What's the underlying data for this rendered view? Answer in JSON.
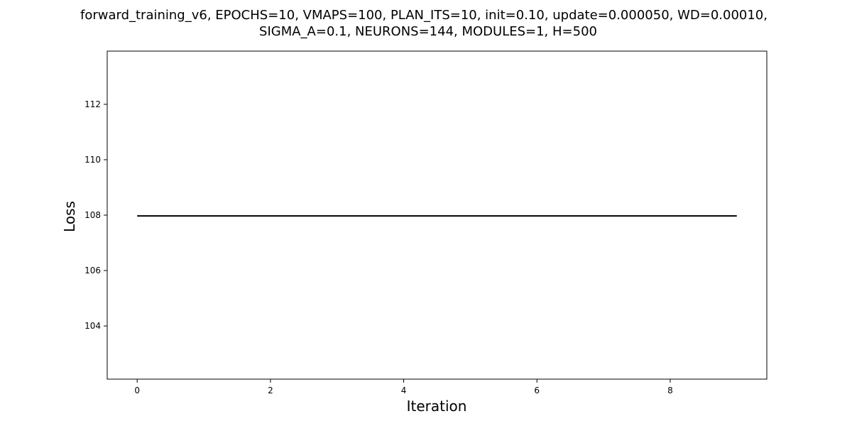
{
  "chart_data": {
    "type": "line",
    "title_lines": [
      "forward_training_v6, EPOCHS=10, VMAPS=100, PLAN_ITS=10, init=0.10, update=0.000050, WD=0.00010,",
      "SIGMA_A=0.1, NEURONS=144, MODULES=1, H=500"
    ],
    "xlabel": "Iteration",
    "ylabel": "Loss",
    "xlim": [
      -0.45,
      9.45
    ],
    "ylim": [
      102.08,
      113.92
    ],
    "x_ticks": [
      0,
      2,
      4,
      6,
      8
    ],
    "y_ticks": [
      104,
      106,
      108,
      110,
      112
    ],
    "grid": false,
    "series": [
      {
        "color": "#000000",
        "x": [
          0,
          1,
          2,
          3,
          4,
          5,
          6,
          7,
          8,
          9
        ],
        "y": [
          107.97,
          107.97,
          107.97,
          107.97,
          107.97,
          107.97,
          107.97,
          107.97,
          107.97,
          107.97
        ]
      }
    ]
  }
}
